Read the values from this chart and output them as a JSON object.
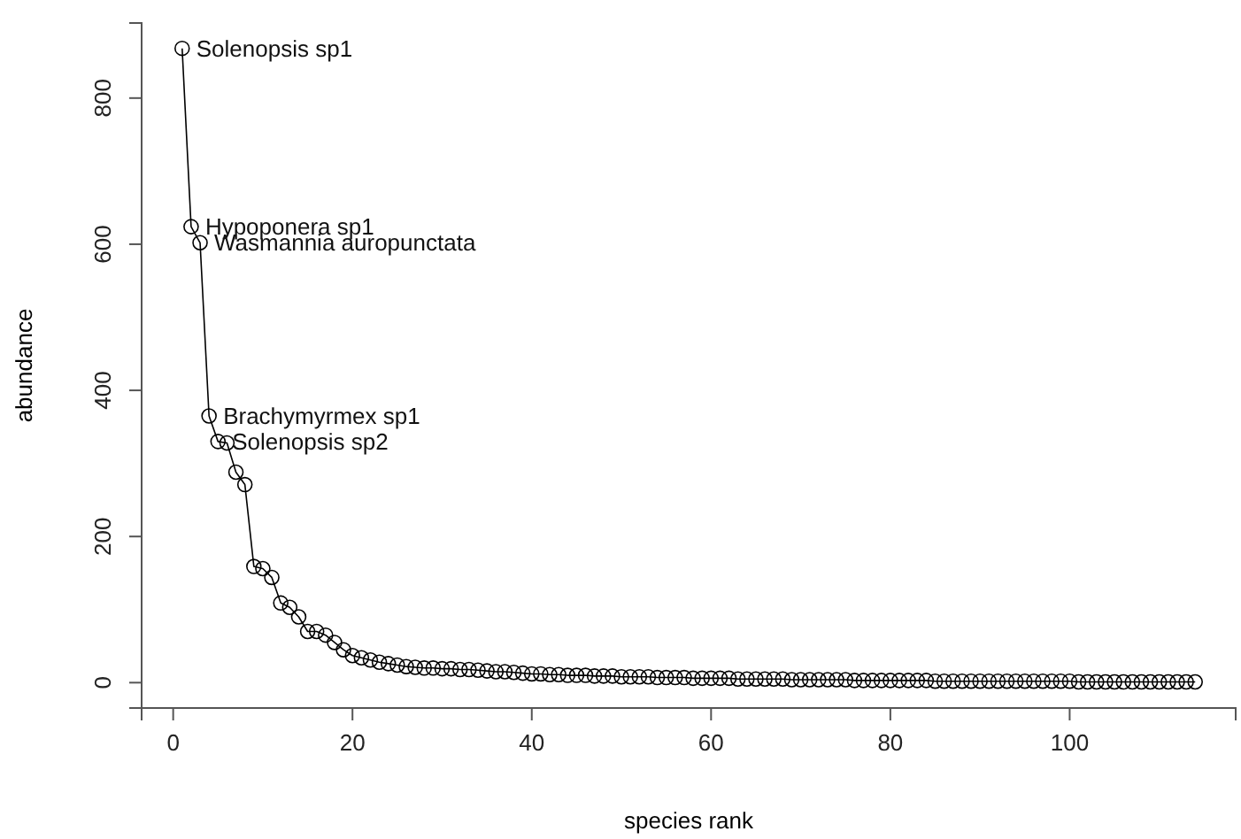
{
  "chart_data": {
    "type": "line",
    "xlabel": "species rank",
    "ylabel": "abundance",
    "x": [
      1,
      2,
      3,
      4,
      5,
      6,
      7,
      8,
      9,
      10,
      11,
      12,
      13,
      14,
      15,
      16,
      17,
      18,
      19,
      20,
      21,
      22,
      23,
      24,
      25,
      26,
      27,
      28,
      29,
      30,
      31,
      32,
      33,
      34,
      35,
      36,
      37,
      38,
      39,
      40,
      41,
      42,
      43,
      44,
      45,
      46,
      47,
      48,
      49,
      50,
      51,
      52,
      53,
      54,
      55,
      56,
      57,
      58,
      59,
      60,
      61,
      62,
      63,
      64,
      65,
      66,
      67,
      68,
      69,
      70,
      71,
      72,
      73,
      74,
      75,
      76,
      77,
      78,
      79,
      80,
      81,
      82,
      83,
      84,
      85,
      86,
      87,
      88,
      89,
      90,
      91,
      92,
      93,
      94,
      95,
      96,
      97,
      98,
      99,
      100,
      101,
      102,
      103,
      104,
      105,
      106,
      107,
      108,
      109,
      110,
      111,
      112,
      113,
      114
    ],
    "series": [
      {
        "color": "#000000",
        "values": [
          868,
          624,
          602,
          365,
          330,
          328,
          288,
          271,
          159,
          156,
          144,
          109,
          103,
          90,
          70,
          70,
          65,
          55,
          45,
          37,
          34,
          31,
          28,
          26,
          24,
          22,
          21,
          20,
          20,
          19,
          19,
          18,
          18,
          17,
          16,
          15,
          15,
          14,
          13,
          12,
          12,
          11,
          11,
          10,
          10,
          10,
          9,
          9,
          9,
          8,
          8,
          8,
          8,
          7,
          7,
          7,
          7,
          6,
          6,
          6,
          6,
          6,
          5,
          5,
          5,
          5,
          5,
          5,
          4,
          4,
          4,
          4,
          4,
          4,
          4,
          3,
          3,
          3,
          3,
          3,
          3,
          3,
          3,
          3,
          2,
          2,
          2,
          2,
          2,
          2,
          2,
          2,
          2,
          2,
          2,
          2,
          2,
          2,
          2,
          2,
          1,
          1,
          1,
          1,
          1,
          1,
          1,
          1,
          1,
          1,
          1,
          1,
          1,
          1
        ]
      }
    ],
    "annotations": [
      {
        "text": "Solenopsis sp1",
        "x": 1,
        "y": 868
      },
      {
        "text": "Hypoponera sp1",
        "x": 2,
        "y": 624
      },
      {
        "text": "Wasmannia auropunctata",
        "x": 3,
        "y": 602
      },
      {
        "text": "Brachymyrmex sp1",
        "x": 4,
        "y": 365
      },
      {
        "text": "Solenopsis sp2",
        "x": 5,
        "y": 330
      }
    ],
    "xlim": [
      -3.52,
      118.52
    ],
    "xticks": [
      0,
      20,
      40,
      60,
      80,
      100
    ],
    "ylim": [
      -34.72,
      902.72
    ],
    "yticks": [
      0,
      200,
      400,
      600,
      800
    ],
    "marker": "circle",
    "line_style": "solid",
    "grid": false
  }
}
